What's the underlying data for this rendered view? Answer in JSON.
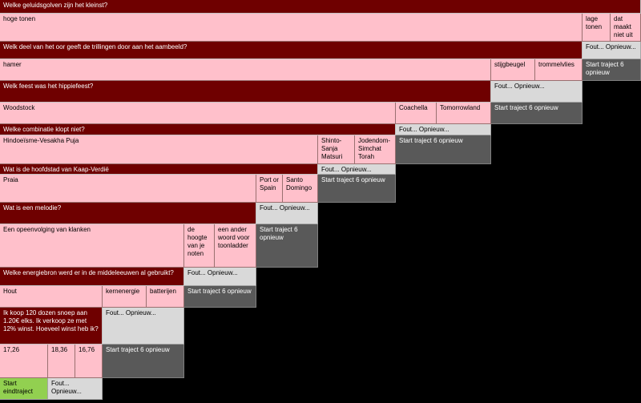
{
  "rows": [
    {
      "question": "Welke geluidsgolven zijn het kleinst?",
      "answers": [
        "hoge tonen",
        "lage tonen",
        "dat maakt niet uit"
      ]
    },
    {
      "question": "Welk deel van het oor geeft de trillingen door aan het aambeeld?",
      "answers": [
        "hamer",
        "stijgbeugel",
        "trommelvlies"
      ]
    },
    {
      "question": "Welk feest was het hippiefeest?",
      "answers": [
        "Woodstock",
        "Coachella",
        "Tomorrowland"
      ]
    },
    {
      "question": "Welke combinatie klopt niet?",
      "answers": [
        "Hindoeïsme-Vesakha Puja",
        "Shinto-Sanja Matsuri",
        "Jodendom-Simchat Torah"
      ]
    },
    {
      "question": "Wat is de hoofdstad van Kaap-Verdië",
      "answers": [
        "Praia",
        "Port or Spain",
        "Santo Domingo"
      ]
    },
    {
      "question": "Wat is een melodie?",
      "answers": [
        "Een opeenvolging van klanken",
        "de hoogte van je noten",
        "een ander woord voor toonladder"
      ]
    },
    {
      "question": "Welke energiebron werd er in de middeleeuwen al gebruikt?",
      "answers": [
        "Hout",
        "kernenergie",
        "batterijen"
      ]
    },
    {
      "question": "Ik koop 120 dozen snoep aan 1.20€ elks. Ik verkoop ze met 12% winst. Hoeveel winst heb ik?",
      "answers": [
        "17,26",
        "18,36",
        "16,76"
      ]
    }
  ],
  "fout_label": "Fout... Opnieuw...",
  "start_label": "Start traject 6 opnieuw",
  "end_label": "Start eindtraject",
  "colors": {
    "question_bg": "#6f0000",
    "answer_bg": "#ffc0cb",
    "fout_bg": "#d9d9d9",
    "restart_bg": "#595959",
    "end_bg": "#92d050",
    "background": "#000000"
  }
}
